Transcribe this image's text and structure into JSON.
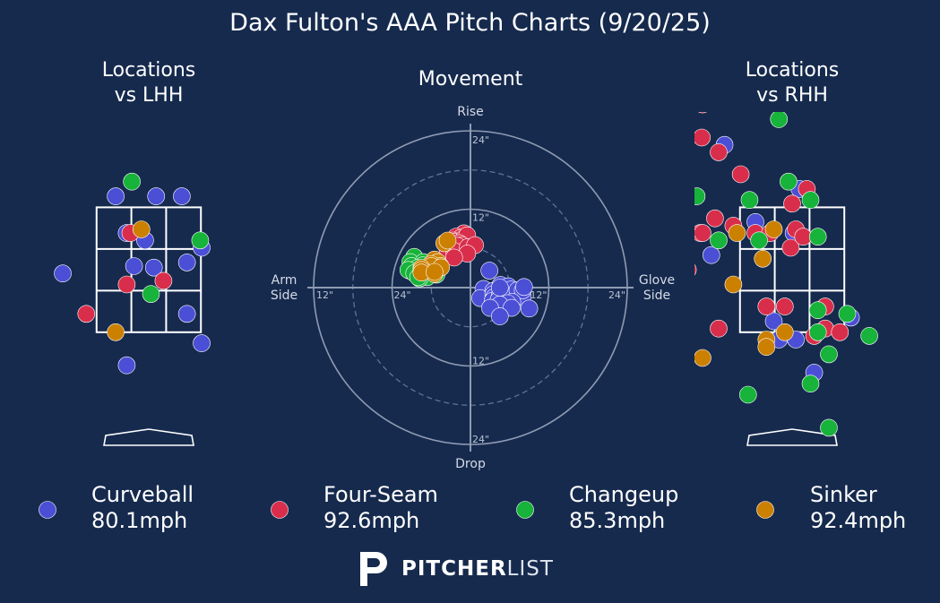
{
  "title": "Dax Fulton's AAA Pitch Charts (9/20/25)",
  "colors": {
    "background": "#162a4e",
    "Curveball": "#4b4fd6",
    "Four-Seam": "#d92e4b",
    "Changeup": "#17b33a",
    "Sinker": "#cc8000"
  },
  "panels": {
    "lhh_title": "Locations\nvs LHH",
    "movement_title": "Movement",
    "rhh_title": "Locations\nvs RHH"
  },
  "movement_labels": {
    "top": "Rise",
    "bottom": "Drop",
    "left": "Arm\nSide",
    "right": "Glove\nSide",
    "ring_labels": [
      "24\"",
      "12\"",
      "12\"",
      "24\"",
      "24\"",
      "12\"",
      "12\"",
      "24\""
    ]
  },
  "legend": [
    {
      "pitch": "Curveball",
      "velo": "80.1mph"
    },
    {
      "pitch": "Four-Seam",
      "velo": "92.6mph"
    },
    {
      "pitch": "Changeup",
      "velo": "85.3mph"
    },
    {
      "pitch": "Sinker",
      "velo": "92.4mph"
    }
  ],
  "brand": {
    "bold": "PITCHER",
    "light": "LIST"
  },
  "chart_data": [
    {
      "type": "scatter",
      "title": "Locations vs LHH",
      "units": "feet from plate center (x) / feet above ground (y)",
      "xlim": [
        -1.45,
        1.45
      ],
      "ylim": [
        0,
        4.85
      ],
      "series": [
        {
          "name": "Curveball",
          "points": [
            [
              -0.45,
              3.45
            ],
            [
              0.1,
              3.45
            ],
            [
              0.45,
              3.45
            ],
            [
              -0.3,
              2.95
            ],
            [
              -0.05,
              2.85
            ],
            [
              0.72,
              2.75
            ],
            [
              -0.2,
              2.5
            ],
            [
              0.07,
              2.48
            ],
            [
              -1.17,
              2.4
            ],
            [
              0.52,
              2.55
            ],
            [
              0.52,
              1.85
            ],
            [
              0.72,
              1.45
            ],
            [
              -0.3,
              1.15
            ]
          ]
        },
        {
          "name": "Four-Seam",
          "points": [
            [
              -0.25,
              2.95
            ],
            [
              0.2,
              2.3
            ],
            [
              -0.3,
              2.25
            ],
            [
              -0.85,
              1.85
            ]
          ]
        },
        {
          "name": "Changeup",
          "points": [
            [
              -0.23,
              3.65
            ],
            [
              0.7,
              2.85
            ],
            [
              0.03,
              2.12
            ]
          ]
        },
        {
          "name": "Sinker",
          "points": [
            [
              -0.1,
              3.0
            ],
            [
              -0.45,
              1.6
            ]
          ]
        }
      ]
    },
    {
      "type": "scatter",
      "title": "Movement",
      "units": "inches (x: glove side +, y: rise +)",
      "xlim": [
        -24,
        24
      ],
      "ylim": [
        -24,
        24
      ],
      "series": [
        {
          "name": "Curveball",
          "points": [
            [
              2.9,
              2.6
            ],
            [
              2.0,
              -0.2
            ],
            [
              1.5,
              -1.6
            ],
            [
              3.5,
              -0.5
            ],
            [
              3.5,
              -1.0
            ],
            [
              3.6,
              -1.5
            ],
            [
              3.4,
              -2.0
            ],
            [
              4.6,
              0.4
            ],
            [
              4.9,
              -0.7
            ],
            [
              4.5,
              -1.2
            ],
            [
              4.3,
              -1.9
            ],
            [
              5.3,
              -0.2
            ],
            [
              5.6,
              -0.4
            ],
            [
              5.8,
              0.2
            ],
            [
              6.2,
              -0.3
            ],
            [
              6.3,
              -1.3
            ],
            [
              7.2,
              -0.4
            ],
            [
              8.0,
              -1.4
            ],
            [
              8.0,
              -0.4
            ],
            [
              8.2,
              0.1
            ],
            [
              6.4,
              -2.2
            ],
            [
              5.7,
              -2.4
            ],
            [
              4.5,
              -2.6
            ],
            [
              3.0,
              -3.1
            ],
            [
              6.3,
              -3.1
            ],
            [
              4.5,
              -4.4
            ],
            [
              9.0,
              -3.2
            ],
            [
              4.5,
              0.0
            ]
          ]
        },
        {
          "name": "Four-Seam",
          "points": [
            [
              -1.0,
              8.3
            ],
            [
              -2.2,
              7.8
            ],
            [
              -1.5,
              7.6
            ],
            [
              -2.7,
              7.2
            ],
            [
              -2.3,
              7.0
            ],
            [
              -1.0,
              7.5
            ],
            [
              -0.5,
              8.0
            ],
            [
              -1.7,
              6.8
            ],
            [
              -2.7,
              6.2
            ],
            [
              -1.3,
              6.5
            ],
            [
              -2.0,
              6.4
            ],
            [
              -3.5,
              5.8
            ],
            [
              -2.5,
              5.6
            ],
            [
              -0.4,
              6.2
            ],
            [
              0.7,
              6.5
            ],
            [
              -0.5,
              5.2
            ],
            [
              -2.5,
              4.6
            ]
          ]
        },
        {
          "name": "Changeup",
          "points": [
            [
              -8.6,
              4.7
            ],
            [
              -9.2,
              3.9
            ],
            [
              -9.0,
              3.3
            ],
            [
              -7.2,
              3.9
            ],
            [
              -7.3,
              3.4
            ],
            [
              -8.1,
              3.0
            ],
            [
              -7.7,
              2.5
            ],
            [
              -9.3,
              2.6
            ],
            [
              -9.5,
              2.7
            ],
            [
              -8.6,
              2.2
            ],
            [
              -7.0,
              2.6
            ],
            [
              -6.3,
              2.1
            ],
            [
              -5.2,
              2.0
            ],
            [
              -6.8,
              2.4
            ],
            [
              -6.6,
              1.6
            ],
            [
              -7.8,
              1.4
            ],
            [
              -8.0,
              1.6
            ]
          ]
        },
        {
          "name": "Sinker",
          "points": [
            [
              -4.0,
              6.8
            ],
            [
              -3.5,
              7.2
            ],
            [
              -5.5,
              4.3
            ],
            [
              -5.4,
              3.7
            ],
            [
              -5.0,
              3.9
            ],
            [
              -5.5,
              3.2
            ],
            [
              -5.6,
              2.9
            ],
            [
              -4.6,
              3.3
            ],
            [
              -6.0,
              3.6
            ],
            [
              -6.0,
              3.3
            ],
            [
              -7.5,
              3.0
            ],
            [
              -7.5,
              2.7
            ],
            [
              -5.5,
              2.1
            ],
            [
              -4.5,
              3.1
            ],
            [
              -7.5,
              2.3
            ],
            [
              -5.5,
              2.4
            ]
          ]
        }
      ]
    },
    {
      "type": "scatter",
      "title": "Locations vs RHH",
      "units": "feet from plate center (x) / feet above ground (y)",
      "xlim": [
        -1.45,
        1.45
      ],
      "ylim": [
        0,
        4.85
      ],
      "series": [
        {
          "name": "Curveball",
          "points": [
            [
              -1.0,
              4.75
            ],
            [
              -0.92,
              4.15
            ],
            [
              0.1,
              3.55
            ],
            [
              0.02,
              2.95
            ],
            [
              -0.25,
              1.75
            ],
            [
              0.05,
              1.5
            ],
            [
              -0.18,
              1.5
            ],
            [
              0.8,
              1.8
            ],
            [
              0.3,
              1.05
            ],
            [
              -1.1,
              2.65
            ],
            [
              -0.5,
              3.1
            ]
          ]
        },
        {
          "name": "Four-Seam",
          "points": [
            [
              -1.22,
              4.7
            ],
            [
              -1.23,
              4.25
            ],
            [
              -1.0,
              4.05
            ],
            [
              -1.45,
              3.9
            ],
            [
              -0.7,
              3.75
            ],
            [
              -1.05,
              3.15
            ],
            [
              -1.25,
              2.95
            ],
            [
              -0.8,
              3.05
            ],
            [
              -0.5,
              2.95
            ],
            [
              -0.3,
              2.95
            ],
            [
              0.05,
              3.0
            ],
            [
              0.2,
              3.55
            ],
            [
              0.0,
              3.35
            ],
            [
              -0.02,
              2.75
            ],
            [
              -0.35,
              1.95
            ],
            [
              -0.1,
              1.95
            ],
            [
              0.15,
              2.9
            ],
            [
              -1.0,
              1.65
            ],
            [
              0.3,
              1.55
            ],
            [
              0.45,
              1.95
            ],
            [
              0.45,
              1.65
            ],
            [
              0.65,
              1.6
            ],
            [
              1.45,
              2.5
            ],
            [
              1.5,
              3.5
            ],
            [
              -1.42,
              2.45
            ],
            [
              -1.22,
              2.95
            ]
          ]
        },
        {
          "name": "Changeup",
          "points": [
            [
              -0.18,
              4.5
            ],
            [
              -0.58,
              3.4
            ],
            [
              -0.45,
              2.85
            ],
            [
              -1.0,
              2.85
            ],
            [
              -1.3,
              3.45
            ],
            [
              -0.05,
              3.65
            ],
            [
              0.25,
              3.4
            ],
            [
              0.35,
              2.9
            ],
            [
              0.35,
              1.9
            ],
            [
              0.35,
              1.6
            ],
            [
              0.5,
              1.3
            ],
            [
              0.75,
              1.85
            ],
            [
              1.05,
              1.55
            ],
            [
              0.25,
              0.9
            ],
            [
              -0.6,
              0.75
            ],
            [
              0.5,
              0.3
            ]
          ]
        },
        {
          "name": "Sinker",
          "points": [
            [
              -0.8,
              2.25
            ],
            [
              -0.4,
              2.6
            ],
            [
              -0.25,
              3.0
            ],
            [
              -0.75,
              2.95
            ],
            [
              -0.35,
              1.5
            ],
            [
              -0.1,
              1.6
            ],
            [
              -0.35,
              1.4
            ],
            [
              -1.22,
              1.25
            ]
          ]
        }
      ]
    }
  ]
}
